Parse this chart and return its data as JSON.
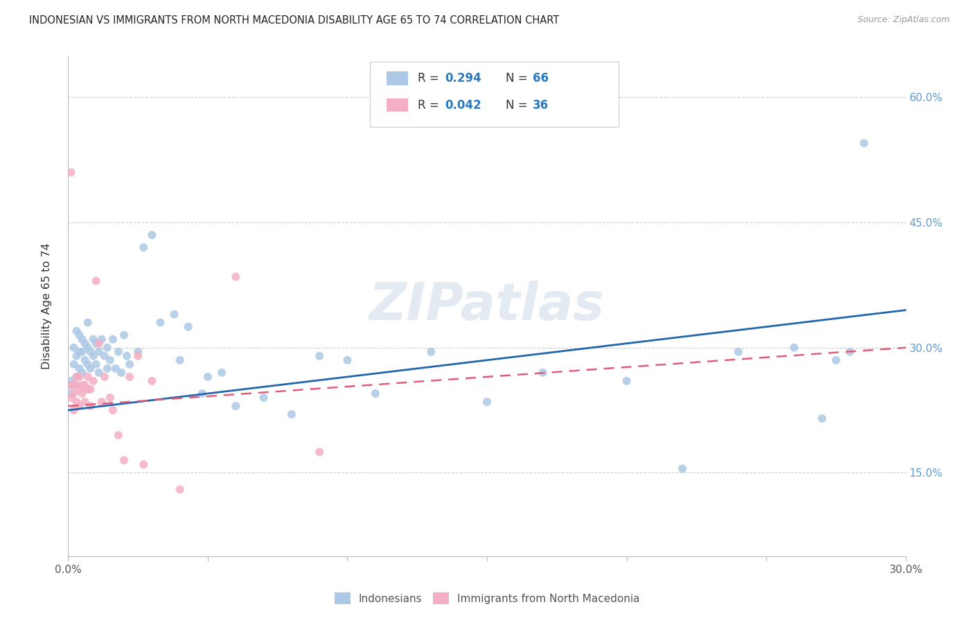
{
  "title": "INDONESIAN VS IMMIGRANTS FROM NORTH MACEDONIA DISABILITY AGE 65 TO 74 CORRELATION CHART",
  "source": "Source: ZipAtlas.com",
  "ylabel": "Disability Age 65 to 74",
  "xlim": [
    0.0,
    0.3
  ],
  "ylim": [
    0.05,
    0.65
  ],
  "xticks": [
    0.0,
    0.05,
    0.1,
    0.15,
    0.2,
    0.25,
    0.3
  ],
  "xticklabels": [
    "0.0%",
    "",
    "",
    "",
    "",
    "",
    "30.0%"
  ],
  "yticks": [
    0.15,
    0.3,
    0.45,
    0.6
  ],
  "yticklabels": [
    "15.0%",
    "30.0%",
    "45.0%",
    "60.0%"
  ],
  "legend_r1": "R = 0.294",
  "legend_n1": "N = 66",
  "legend_r2": "R = 0.042",
  "legend_n2": "N = 36",
  "indonesian_color": "#adc8e6",
  "macedonia_color": "#f4afc4",
  "trend_indonesian_color": "#2166ac",
  "trend_macedonia_color": "#e05c7a",
  "watermark": "ZIPatlas",
  "indonesian_x": [
    0.001,
    0.001,
    0.002,
    0.002,
    0.002,
    0.003,
    0.003,
    0.003,
    0.004,
    0.004,
    0.004,
    0.005,
    0.005,
    0.005,
    0.006,
    0.006,
    0.007,
    0.007,
    0.007,
    0.008,
    0.008,
    0.009,
    0.009,
    0.01,
    0.01,
    0.011,
    0.011,
    0.012,
    0.013,
    0.014,
    0.014,
    0.015,
    0.016,
    0.017,
    0.018,
    0.019,
    0.02,
    0.021,
    0.022,
    0.025,
    0.027,
    0.03,
    0.033,
    0.038,
    0.04,
    0.043,
    0.048,
    0.05,
    0.055,
    0.06,
    0.07,
    0.08,
    0.09,
    0.1,
    0.11,
    0.13,
    0.15,
    0.17,
    0.2,
    0.22,
    0.24,
    0.26,
    0.27,
    0.275,
    0.28,
    0.285
  ],
  "indonesian_y": [
    0.245,
    0.26,
    0.255,
    0.28,
    0.3,
    0.265,
    0.29,
    0.32,
    0.275,
    0.295,
    0.315,
    0.27,
    0.295,
    0.31,
    0.285,
    0.305,
    0.28,
    0.3,
    0.33,
    0.275,
    0.295,
    0.29,
    0.31,
    0.28,
    0.305,
    0.295,
    0.27,
    0.31,
    0.29,
    0.275,
    0.3,
    0.285,
    0.31,
    0.275,
    0.295,
    0.27,
    0.315,
    0.29,
    0.28,
    0.295,
    0.42,
    0.435,
    0.33,
    0.34,
    0.285,
    0.325,
    0.245,
    0.265,
    0.27,
    0.23,
    0.24,
    0.22,
    0.29,
    0.285,
    0.245,
    0.295,
    0.235,
    0.27,
    0.26,
    0.155,
    0.295,
    0.3,
    0.215,
    0.285,
    0.295,
    0.545
  ],
  "macedonia_x": [
    0.001,
    0.001,
    0.001,
    0.002,
    0.002,
    0.002,
    0.003,
    0.003,
    0.003,
    0.004,
    0.004,
    0.004,
    0.005,
    0.005,
    0.006,
    0.006,
    0.007,
    0.007,
    0.008,
    0.008,
    0.009,
    0.01,
    0.011,
    0.012,
    0.013,
    0.015,
    0.016,
    0.018,
    0.02,
    0.022,
    0.025,
    0.027,
    0.03,
    0.04,
    0.06,
    0.09
  ],
  "macedonia_y": [
    0.24,
    0.255,
    0.51,
    0.225,
    0.245,
    0.255,
    0.235,
    0.255,
    0.265,
    0.23,
    0.25,
    0.265,
    0.245,
    0.255,
    0.235,
    0.255,
    0.25,
    0.265,
    0.23,
    0.25,
    0.26,
    0.38,
    0.305,
    0.235,
    0.265,
    0.24,
    0.225,
    0.195,
    0.165,
    0.265,
    0.29,
    0.16,
    0.26,
    0.13,
    0.385,
    0.175
  ],
  "trend_indo_x0": 0.0,
  "trend_indo_y0": 0.225,
  "trend_indo_x1": 0.3,
  "trend_indo_y1": 0.345,
  "trend_mac_x0": 0.0,
  "trend_mac_y0": 0.23,
  "trend_mac_x1": 0.3,
  "trend_mac_y1": 0.3
}
